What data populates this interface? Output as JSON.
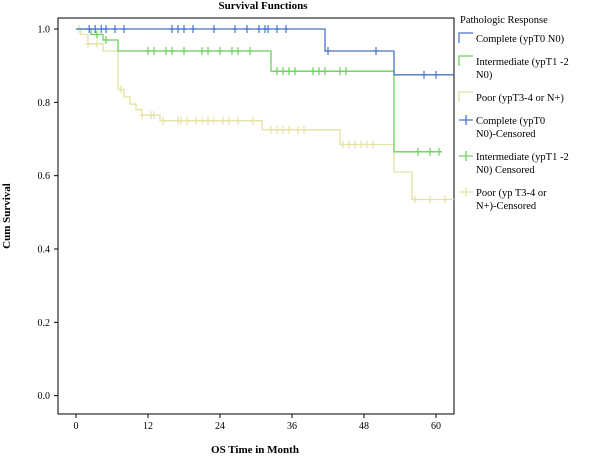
{
  "chart_data": {
    "type": "line",
    "title": "Survival Functions",
    "xlabel": "OS Time in Month",
    "ylabel": "Cum Survival",
    "xlim": [
      -3,
      63
    ],
    "ylim": [
      -0.05,
      1.03
    ],
    "xticks": [
      0,
      12,
      24,
      36,
      48,
      60
    ],
    "yticks": [
      0.0,
      0.2,
      0.4,
      0.6,
      0.8,
      1.0
    ],
    "ytick_labels": [
      "0.0",
      "0.2",
      "0.4",
      "0.6",
      "0.8",
      "1.0"
    ],
    "legend_title": "Pathologic Response",
    "legend_position": "right",
    "series": [
      {
        "name": "Complete (ypT0 N0)",
        "censored_name": "Complete (ypT0 N0)-Censored",
        "color": "#4a74c9",
        "steps": [
          [
            0,
            1.0
          ],
          [
            41.5,
            0.94
          ],
          [
            53,
            0.875
          ],
          [
            63,
            0.875
          ]
        ],
        "censored": [
          2.2,
          3.2,
          4.2,
          5.0,
          6.5,
          8.0,
          16.0,
          17.0,
          18.0,
          19.5,
          23.0,
          26.5,
          28.5,
          30.5,
          31.5,
          32.0,
          33.5,
          35.0,
          42.0,
          50.0,
          58.0,
          60.0
        ]
      },
      {
        "name": "Intermediate (ypT1 -2 N0)",
        "censored_name": "Intermediate (ypT1 -2 N0) Censored",
        "color": "#69d35a",
        "steps": [
          [
            0,
            1.0
          ],
          [
            2.5,
            0.985
          ],
          [
            4.5,
            0.97
          ],
          [
            7.0,
            0.94
          ],
          [
            32.5,
            0.885
          ],
          [
            53,
            0.665
          ],
          [
            61,
            0.665
          ]
        ],
        "censored": [
          3.5,
          5.0,
          12.0,
          13.0,
          15.0,
          16.0,
          18.0,
          21.0,
          22.0,
          24.0,
          26.0,
          27.0,
          29.0,
          33.5,
          34.5,
          35.5,
          36.5,
          39.5,
          40.5,
          41.5,
          44.0,
          45.0,
          57.0,
          59.0,
          60.5
        ]
      },
      {
        "name": "Poor (ypT3-4 or N+)",
        "censored_name": "Poor (yp T3-4 or N+)-Censored",
        "color": "#e3e3a4",
        "steps": [
          [
            0,
            1.0
          ],
          [
            0.8,
            0.985
          ],
          [
            2.0,
            0.96
          ],
          [
            4.5,
            0.94
          ],
          [
            7.0,
            0.835
          ],
          [
            8.0,
            0.815
          ],
          [
            9.0,
            0.795
          ],
          [
            10.0,
            0.78
          ],
          [
            11.0,
            0.765
          ],
          [
            14.0,
            0.75
          ],
          [
            31.0,
            0.725
          ],
          [
            44.0,
            0.685
          ],
          [
            53.0,
            0.61
          ],
          [
            56.0,
            0.535
          ],
          [
            63.0,
            0.535
          ]
        ],
        "censored": [
          0.5,
          2.0,
          3.5,
          7.5,
          11.0,
          12.5,
          13.0,
          14.5,
          17.0,
          17.5,
          18.5,
          20.0,
          21.0,
          22.0,
          23.0,
          24.5,
          25.5,
          27.0,
          29.5,
          32.5,
          33.5,
          34.5,
          35.5,
          37.0,
          38.0,
          44.5,
          45.5,
          46.5,
          47.5,
          48.5,
          49.5,
          56.5,
          59.0,
          61.5
        ]
      }
    ]
  }
}
